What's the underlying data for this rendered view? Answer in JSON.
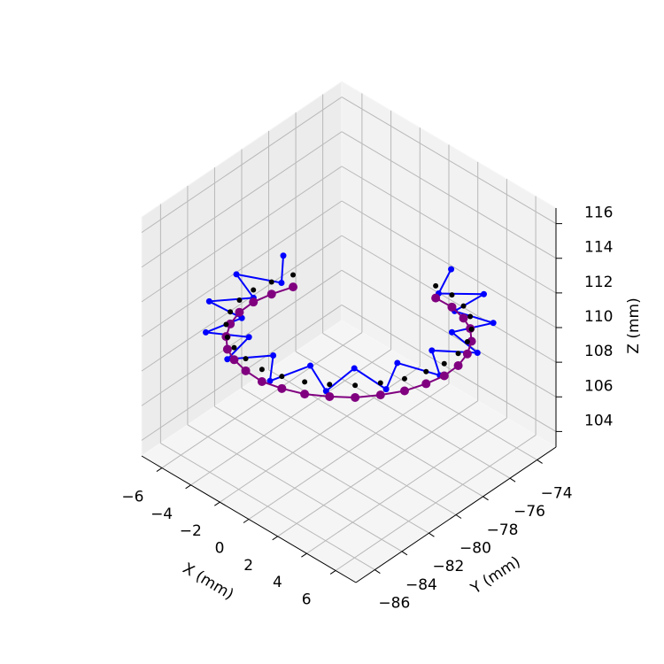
{
  "chart_data": {
    "type": "scatter3d",
    "xlabel": "X (mm)",
    "ylabel": "Y (mm)",
    "zlabel": "Z (mm)",
    "xlim": [
      -7.4,
      7.4
    ],
    "ylim": [
      -87.4,
      -72.6
    ],
    "zlim": [
      103.1,
      116.9
    ],
    "xticks": [
      {
        "value": -6,
        "label": "−6"
      },
      {
        "value": -4,
        "label": "−4"
      },
      {
        "value": -2,
        "label": "−2"
      },
      0,
      2,
      4,
      6
    ],
    "yticks": [
      {
        "value": -86,
        "label": "−86"
      },
      {
        "value": -84,
        "label": "−84"
      },
      {
        "value": -82,
        "label": "−82"
      },
      {
        "value": -80,
        "label": "−80"
      },
      {
        "value": -78,
        "label": "−78"
      },
      {
        "value": -76,
        "label": "−76"
      },
      {
        "value": -74,
        "label": "−74"
      }
    ],
    "zticks": [
      104,
      106,
      108,
      110,
      112,
      114,
      116
    ],
    "grid": true,
    "series": [
      {
        "color": "#0000ff",
        "line": true,
        "marker_size": 3.5,
        "x": [
          -6.86,
          -5.35,
          -7.29,
          -5.19,
          -6.44,
          -4.14,
          -4.5,
          -2.37,
          -1.77,
          -0.19,
          1.27,
          2.02,
          4.08,
          3.88,
          6.19,
          5.08,
          7.23,
          5.39,
          7.01,
          4.76,
          5.59,
          3.33,
          3.2,
          1.31,
          0.26
        ],
        "y": [
          -77.5,
          -79.25,
          -80.51,
          -81.49,
          -83.43,
          -83.48,
          -85.76,
          -84.85,
          -87.09,
          -85.39,
          -87.19,
          -85.01,
          -86.05,
          -83.75,
          -83.87,
          -81.85,
          -81.01,
          -79.63,
          -77.99,
          -77.47,
          -75.3,
          -75.74,
          -73.44,
          -74.76,
          -72.71
        ],
        "z": [
          109.7,
          109.8,
          110.0,
          110.2,
          110.4,
          110.6,
          110.8,
          111.1,
          111.3,
          111.4,
          111.6,
          111.7,
          111.8,
          111.8,
          111.8,
          111.7,
          111.6,
          111.4,
          111.2,
          111.0,
          110.8,
          110.6,
          110.3,
          110.1,
          109.9
        ]
      },
      {
        "color": "#800080",
        "line": true,
        "marker_size": 5,
        "x": [
          -5.83,
          -6.14,
          -6.19,
          -5.96,
          -5.47,
          -4.75,
          -3.82,
          -2.72,
          -1.5,
          -0.22,
          1.08,
          2.32,
          3.47,
          4.46,
          5.26,
          5.83,
          6.14,
          6.19,
          5.96,
          5.47,
          4.75,
          3.82,
          2.72,
          1.5,
          0.22
        ],
        "y": [
          -77.88,
          -79.14,
          -80.43,
          -81.71,
          -82.91,
          -83.99,
          -84.89,
          -85.57,
          -86.02,
          -86.19,
          -86.11,
          -85.75,
          -85.14,
          -84.31,
          -83.29,
          -82.12,
          -80.86,
          -79.57,
          -78.29,
          -77.09,
          -76.01,
          -75.11,
          -74.43,
          -73.98,
          -73.81
        ],
        "z": [
          108.6,
          108.7,
          108.9,
          109.1,
          109.3,
          109.5,
          109.7,
          110.0,
          110.2,
          110.3,
          110.5,
          110.6,
          110.7,
          110.7,
          110.7,
          110.6,
          110.5,
          110.3,
          110.1,
          109.9,
          109.7,
          109.5,
          109.2,
          109.0,
          108.8
        ]
      },
      {
        "color": "#000000",
        "line": false,
        "marker_size": 3,
        "x": [
          -5.83,
          -6.14,
          -6.19,
          -5.96,
          -5.47,
          -4.75,
          -3.82,
          -2.72,
          -1.5,
          -0.22,
          1.08,
          2.32,
          3.47,
          4.46,
          5.26,
          5.83,
          6.14,
          6.19,
          5.96,
          5.47,
          4.75,
          3.82,
          2.72,
          1.5,
          0.22
        ],
        "y": [
          -77.88,
          -79.14,
          -80.43,
          -81.71,
          -82.91,
          -83.99,
          -84.89,
          -85.57,
          -86.02,
          -86.19,
          -86.11,
          -85.75,
          -85.14,
          -84.31,
          -83.29,
          -82.12,
          -80.86,
          -79.57,
          -78.29,
          -77.09,
          -76.01,
          -75.11,
          -74.43,
          -73.98,
          -73.81
        ],
        "z": [
          109.3,
          109.4,
          109.6,
          109.8,
          110.0,
          110.2,
          110.4,
          110.7,
          110.9,
          111.0,
          111.2,
          111.3,
          111.4,
          111.4,
          111.4,
          111.3,
          111.2,
          111.0,
          110.8,
          110.6,
          110.4,
          110.2,
          109.9,
          109.7,
          109.5
        ]
      }
    ]
  }
}
